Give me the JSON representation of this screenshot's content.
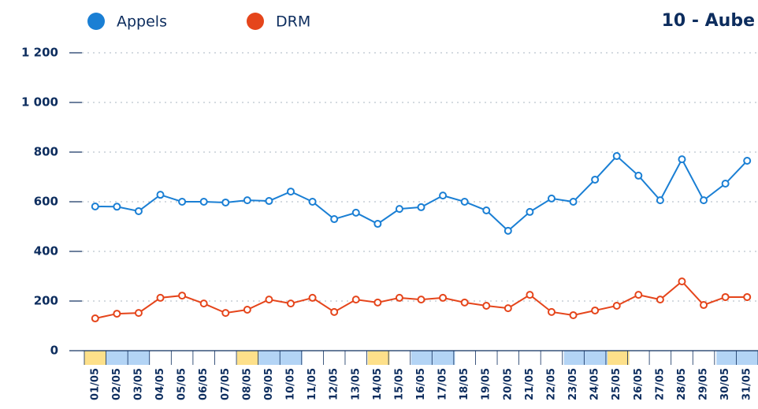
{
  "chart_data": {
    "type": "line",
    "title": "10 - Aube",
    "categories": [
      "01/05",
      "02/05",
      "03/05",
      "04/05",
      "05/05",
      "06/05",
      "07/05",
      "08/05",
      "09/05",
      "10/05",
      "11/05",
      "12/05",
      "13/05",
      "14/05",
      "15/05",
      "16/05",
      "17/05",
      "18/05",
      "19/05",
      "20/05",
      "21/05",
      "22/05",
      "23/05",
      "24/05",
      "25/05",
      "26/05",
      "27/05",
      "28/05",
      "29/05",
      "30/05",
      "31/05"
    ],
    "series": [
      {
        "name": "Appels",
        "color": "#1a7fd4",
        "values": [
          581,
          580,
          562,
          628,
          600,
          600,
          597,
          606,
          603,
          641,
          600,
          530,
          556,
          511,
          571,
          578,
          625,
          600,
          565,
          483,
          559,
          613,
          600,
          689,
          784,
          705,
          606,
          771,
          606,
          673,
          765
        ]
      },
      {
        "name": "DRM",
        "color": "#e5451b",
        "values": [
          130,
          149,
          152,
          213,
          222,
          190,
          152,
          165,
          206,
          190,
          213,
          156,
          206,
          194,
          213,
          206,
          213,
          194,
          181,
          171,
          225,
          156,
          143,
          162,
          181,
          225,
          206,
          279,
          184,
          216,
          216
        ]
      }
    ],
    "ylim": [
      0,
      1200
    ],
    "yticks": [
      0,
      200,
      400,
      600,
      800,
      {
        "value": 1000,
        "label": "1 000"
      },
      {
        "value": 1200,
        "label": "1 200"
      }
    ],
    "grid": true
  }
}
